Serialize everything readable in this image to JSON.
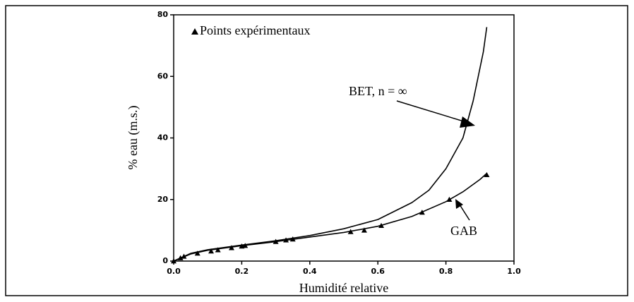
{
  "chart_data": {
    "type": "line",
    "xlabel": "Humidité relative",
    "ylabel": "% eau (m.s.)",
    "xlim": [
      0,
      1.0
    ],
    "ylim": [
      0,
      80
    ],
    "xticks": [
      {
        "value": 0,
        "label": "0.0"
      },
      {
        "value": 0.2,
        "label": "0.2"
      },
      {
        "value": 0.4,
        "label": "0.4"
      },
      {
        "value": 0.6,
        "label": "0.6"
      },
      {
        "value": 0.8,
        "label": "0.8"
      },
      {
        "value": 1.0,
        "label": "1.0"
      }
    ],
    "yticks": [
      0,
      20,
      40,
      60,
      80
    ],
    "color": "#000000",
    "legend": "upper left",
    "series": [
      {
        "name": "Points expérimentaux",
        "marker": "triangle",
        "x": [
          0.0,
          0.02,
          0.03,
          0.07,
          0.11,
          0.13,
          0.17,
          0.2,
          0.21,
          0.3,
          0.33,
          0.35,
          0.52,
          0.56,
          0.61,
          0.73,
          0.81,
          0.92
        ],
        "values": [
          0,
          1,
          1.5,
          2.5,
          3.2,
          3.6,
          4.3,
          4.8,
          5,
          6.3,
          6.8,
          7.1,
          9.5,
          10,
          11.5,
          15.8,
          20,
          28
        ]
      },
      {
        "x": [
          0,
          0.05,
          0.1,
          0.2,
          0.3,
          0.4,
          0.5,
          0.6,
          0.7,
          0.75,
          0.8,
          0.85,
          0.88,
          0.91,
          0.92
        ],
        "values": [
          0,
          2.5,
          3.7,
          5.2,
          6.6,
          8.3,
          10.5,
          13.5,
          19,
          23,
          30,
          40,
          52,
          68,
          76
        ]
      },
      {
        "x": [
          0,
          0.05,
          0.1,
          0.2,
          0.3,
          0.4,
          0.5,
          0.6,
          0.7,
          0.8,
          0.85,
          0.9,
          0.92
        ],
        "values": [
          0,
          2.3,
          3.5,
          5,
          6.3,
          7.8,
          9.3,
          11.3,
          14.5,
          19.3,
          22.5,
          26.5,
          28.5
        ]
      }
    ],
    "annotations": [
      "BET, n = ∞",
      "GAB"
    ]
  }
}
